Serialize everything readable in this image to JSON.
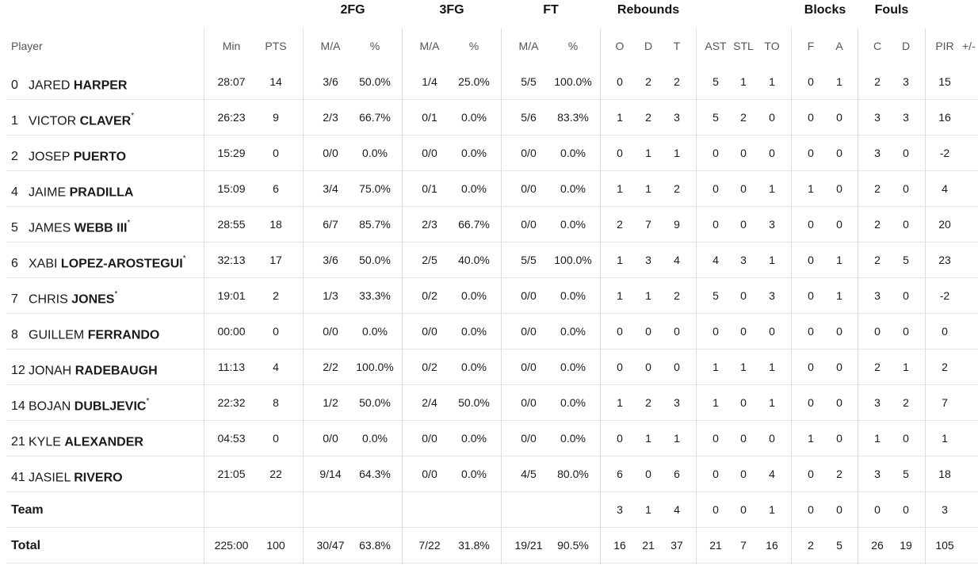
{
  "groups": [
    "2FG",
    "3FG",
    "FT",
    "Rebounds",
    "Blocks",
    "Fouls"
  ],
  "headers": {
    "player": "Player",
    "min": "Min",
    "pts": "PTS",
    "fg2_ma": "M/A",
    "fg2_pct": "%",
    "fg3_ma": "M/A",
    "fg3_pct": "%",
    "ft_ma": "M/A",
    "ft_pct": "%",
    "reb_o": "O",
    "reb_d": "D",
    "reb_t": "T",
    "ast": "AST",
    "stl": "STL",
    "to": "TO",
    "blk_f": "F",
    "blk_a": "A",
    "foul_c": "C",
    "foul_d": "D",
    "pir": "PIR",
    "pm": "+/-"
  },
  "players": [
    {
      "num": "0",
      "first": "JARED",
      "last": "HARPER",
      "starter": "",
      "min": "28:07",
      "pts": "14",
      "fg2": "3/6",
      "fg2p": "50.0%",
      "fg3": "1/4",
      "fg3p": "25.0%",
      "ft": "5/5",
      "ftp": "100.0%",
      "o": "0",
      "d": "2",
      "t": "2",
      "ast": "5",
      "stl": "1",
      "to": "1",
      "bf": "0",
      "ba": "1",
      "fc": "2",
      "fd": "3",
      "pir": "15"
    },
    {
      "num": "1",
      "first": "VICTOR",
      "last": "CLAVER",
      "starter": "*",
      "min": "26:23",
      "pts": "9",
      "fg2": "2/3",
      "fg2p": "66.7%",
      "fg3": "0/1",
      "fg3p": "0.0%",
      "ft": "5/6",
      "ftp": "83.3%",
      "o": "1",
      "d": "2",
      "t": "3",
      "ast": "5",
      "stl": "2",
      "to": "0",
      "bf": "0",
      "ba": "0",
      "fc": "3",
      "fd": "3",
      "pir": "16"
    },
    {
      "num": "2",
      "first": "JOSEP",
      "last": "PUERTO",
      "starter": "",
      "min": "15:29",
      "pts": "0",
      "fg2": "0/0",
      "fg2p": "0.0%",
      "fg3": "0/0",
      "fg3p": "0.0%",
      "ft": "0/0",
      "ftp": "0.0%",
      "o": "0",
      "d": "1",
      "t": "1",
      "ast": "0",
      "stl": "0",
      "to": "0",
      "bf": "0",
      "ba": "0",
      "fc": "3",
      "fd": "0",
      "pir": "-2"
    },
    {
      "num": "4",
      "first": "JAIME",
      "last": "PRADILLA",
      "starter": "",
      "min": "15:09",
      "pts": "6",
      "fg2": "3/4",
      "fg2p": "75.0%",
      "fg3": "0/1",
      "fg3p": "0.0%",
      "ft": "0/0",
      "ftp": "0.0%",
      "o": "1",
      "d": "1",
      "t": "2",
      "ast": "0",
      "stl": "0",
      "to": "1",
      "bf": "1",
      "ba": "0",
      "fc": "2",
      "fd": "0",
      "pir": "4"
    },
    {
      "num": "5",
      "first": "JAMES",
      "last": "WEBB III",
      "starter": "*",
      "min": "28:55",
      "pts": "18",
      "fg2": "6/7",
      "fg2p": "85.7%",
      "fg3": "2/3",
      "fg3p": "66.7%",
      "ft": "0/0",
      "ftp": "0.0%",
      "o": "2",
      "d": "7",
      "t": "9",
      "ast": "0",
      "stl": "0",
      "to": "3",
      "bf": "0",
      "ba": "0",
      "fc": "2",
      "fd": "0",
      "pir": "20"
    },
    {
      "num": "6",
      "first": "XABI",
      "last": "LOPEZ-AROSTEGUI",
      "starter": "*",
      "min": "32:13",
      "pts": "17",
      "fg2": "3/6",
      "fg2p": "50.0%",
      "fg3": "2/5",
      "fg3p": "40.0%",
      "ft": "5/5",
      "ftp": "100.0%",
      "o": "1",
      "d": "3",
      "t": "4",
      "ast": "4",
      "stl": "3",
      "to": "1",
      "bf": "0",
      "ba": "1",
      "fc": "2",
      "fd": "5",
      "pir": "23"
    },
    {
      "num": "7",
      "first": "CHRIS",
      "last": "JONES",
      "starter": "*",
      "min": "19:01",
      "pts": "2",
      "fg2": "1/3",
      "fg2p": "33.3%",
      "fg3": "0/2",
      "fg3p": "0.0%",
      "ft": "0/0",
      "ftp": "0.0%",
      "o": "1",
      "d": "1",
      "t": "2",
      "ast": "5",
      "stl": "0",
      "to": "3",
      "bf": "0",
      "ba": "1",
      "fc": "3",
      "fd": "0",
      "pir": "-2"
    },
    {
      "num": "8",
      "first": "GUILLEM",
      "last": "FERRANDO",
      "starter": "",
      "min": "00:00",
      "pts": "0",
      "fg2": "0/0",
      "fg2p": "0.0%",
      "fg3": "0/0",
      "fg3p": "0.0%",
      "ft": "0/0",
      "ftp": "0.0%",
      "o": "0",
      "d": "0",
      "t": "0",
      "ast": "0",
      "stl": "0",
      "to": "0",
      "bf": "0",
      "ba": "0",
      "fc": "0",
      "fd": "0",
      "pir": "0"
    },
    {
      "num": "12",
      "first": "JONAH",
      "last": "RADEBAUGH",
      "starter": "",
      "min": "11:13",
      "pts": "4",
      "fg2": "2/2",
      "fg2p": "100.0%",
      "fg3": "0/2",
      "fg3p": "0.0%",
      "ft": "0/0",
      "ftp": "0.0%",
      "o": "0",
      "d": "0",
      "t": "0",
      "ast": "1",
      "stl": "1",
      "to": "1",
      "bf": "0",
      "ba": "0",
      "fc": "2",
      "fd": "1",
      "pir": "2"
    },
    {
      "num": "14",
      "first": "BOJAN",
      "last": "DUBLJEVIC",
      "starter": "*",
      "min": "22:32",
      "pts": "8",
      "fg2": "1/2",
      "fg2p": "50.0%",
      "fg3": "2/4",
      "fg3p": "50.0%",
      "ft": "0/0",
      "ftp": "0.0%",
      "o": "1",
      "d": "2",
      "t": "3",
      "ast": "1",
      "stl": "0",
      "to": "1",
      "bf": "0",
      "ba": "0",
      "fc": "3",
      "fd": "2",
      "pir": "7"
    },
    {
      "num": "21",
      "first": "KYLE",
      "last": "ALEXANDER",
      "starter": "",
      "min": "04:53",
      "pts": "0",
      "fg2": "0/0",
      "fg2p": "0.0%",
      "fg3": "0/0",
      "fg3p": "0.0%",
      "ft": "0/0",
      "ftp": "0.0%",
      "o": "0",
      "d": "1",
      "t": "1",
      "ast": "0",
      "stl": "0",
      "to": "0",
      "bf": "1",
      "ba": "0",
      "fc": "1",
      "fd": "0",
      "pir": "1"
    },
    {
      "num": "41",
      "first": "JASIEL",
      "last": "RIVERO",
      "starter": "",
      "min": "21:05",
      "pts": "22",
      "fg2": "9/14",
      "fg2p": "64.3%",
      "fg3": "0/0",
      "fg3p": "0.0%",
      "ft": "4/5",
      "ftp": "80.0%",
      "o": "6",
      "d": "0",
      "t": "6",
      "ast": "0",
      "stl": "0",
      "to": "4",
      "bf": "0",
      "ba": "2",
      "fc": "3",
      "fd": "5",
      "pir": "18"
    }
  ],
  "team": {
    "label": "Team",
    "min": "",
    "pts": "",
    "fg2": "",
    "fg2p": "",
    "fg3": "",
    "fg3p": "",
    "ft": "",
    "ftp": "",
    "o": "3",
    "d": "1",
    "t": "4",
    "ast": "0",
    "stl": "0",
    "to": "1",
    "bf": "0",
    "ba": "0",
    "fc": "0",
    "fd": "0",
    "pir": "3"
  },
  "total": {
    "label": "Total",
    "min": "225:00",
    "pts": "100",
    "fg2": "30/47",
    "fg2p": "63.8%",
    "fg3": "7/22",
    "fg3p": "31.8%",
    "ft": "19/21",
    "ftp": "90.5%",
    "o": "16",
    "d": "21",
    "t": "37",
    "ast": "21",
    "stl": "7",
    "to": "16",
    "bf": "2",
    "ba": "5",
    "fc": "26",
    "fd": "19",
    "pir": "105"
  }
}
